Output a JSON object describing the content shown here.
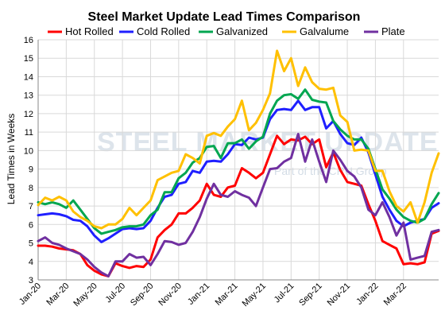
{
  "chart_data": {
    "type": "line",
    "title": "Steel Market Update Lead Times Comparison",
    "ylabel": "Lead Times in Weeks",
    "xlabel": "",
    "ylim": [
      3,
      16
    ],
    "yticks": [
      3,
      4,
      5,
      6,
      7,
      8,
      9,
      10,
      11,
      12,
      13,
      14,
      15,
      16
    ],
    "x_tick_labels": [
      "Jan-20",
      "Mar-20",
      "May-20",
      "Jul-20",
      "Sep-20",
      "Nov-20",
      "Jan-21",
      "Mar-21",
      "May-21",
      "Jul-21",
      "Sep-21",
      "Nov-21",
      "Jan-22",
      "Mar-22"
    ],
    "x_range_months": [
      0,
      27.5
    ],
    "grid": true,
    "legend_position": "top",
    "watermark": {
      "title": "STEEL MARKET UPDATE",
      "subtitle": "Part of the CRU Group"
    },
    "series": [
      {
        "name": "Hot Rolled",
        "color": "#ff0000",
        "points": [
          [
            0,
            4.85
          ],
          [
            0.5,
            4.85
          ],
          [
            1,
            4.8
          ],
          [
            1.5,
            4.7
          ],
          [
            2,
            4.65
          ],
          [
            2.5,
            4.6
          ],
          [
            3,
            4.4
          ],
          [
            3.5,
            3.8
          ],
          [
            4,
            3.5
          ],
          [
            4.5,
            3.3
          ],
          [
            5,
            3.2
          ],
          [
            5.5,
            3.9
          ],
          [
            6,
            3.75
          ],
          [
            6.5,
            3.65
          ],
          [
            7,
            3.75
          ],
          [
            7.5,
            3.7
          ],
          [
            8,
            4.1
          ],
          [
            8.5,
            5.3
          ],
          [
            9,
            5.7
          ],
          [
            9.5,
            6.0
          ],
          [
            10,
            6.6
          ],
          [
            10.5,
            6.6
          ],
          [
            11,
            6.9
          ],
          [
            11.5,
            7.3
          ],
          [
            12,
            8.2
          ],
          [
            12.5,
            7.6
          ],
          [
            13,
            7.5
          ],
          [
            13.5,
            8.0
          ],
          [
            14,
            8.1
          ],
          [
            14.5,
            9.05
          ],
          [
            15,
            8.8
          ],
          [
            15.5,
            8.5
          ],
          [
            16,
            8.8
          ],
          [
            16.5,
            9.8
          ],
          [
            17,
            10.8
          ],
          [
            17.5,
            10.35
          ],
          [
            18,
            10.6
          ],
          [
            18.5,
            10.55
          ],
          [
            19,
            10.75
          ],
          [
            19.5,
            10.35
          ],
          [
            20,
            10.6
          ],
          [
            20.5,
            9.1
          ],
          [
            21,
            9.9
          ],
          [
            21.5,
            8.95
          ],
          [
            22,
            8.3
          ],
          [
            22.5,
            8.2
          ],
          [
            23,
            8.1
          ],
          [
            23.5,
            7.1
          ],
          [
            24,
            6.2
          ],
          [
            24.5,
            5.1
          ],
          [
            25,
            4.9
          ],
          [
            25.5,
            4.7
          ],
          [
            26,
            3.85
          ],
          [
            26.5,
            3.9
          ],
          [
            27,
            3.85
          ],
          [
            27.5,
            3.95
          ],
          [
            28,
            5.5
          ],
          [
            28.5,
            5.65
          ]
        ]
      },
      {
        "name": "Cold Rolled",
        "color": "#1f1fff",
        "points": [
          [
            0,
            6.5
          ],
          [
            0.5,
            6.55
          ],
          [
            1,
            6.6
          ],
          [
            1.5,
            6.55
          ],
          [
            2,
            6.45
          ],
          [
            2.5,
            6.25
          ],
          [
            3,
            6.2
          ],
          [
            3.5,
            5.9
          ],
          [
            4,
            5.4
          ],
          [
            4.5,
            5.05
          ],
          [
            5,
            5.25
          ],
          [
            5.5,
            5.5
          ],
          [
            6,
            5.75
          ],
          [
            6.5,
            5.8
          ],
          [
            7,
            5.75
          ],
          [
            7.5,
            5.8
          ],
          [
            8,
            6.2
          ],
          [
            8.5,
            6.9
          ],
          [
            9,
            7.5
          ],
          [
            9.5,
            7.6
          ],
          [
            10,
            8.2
          ],
          [
            10.5,
            8.3
          ],
          [
            11,
            8.9
          ],
          [
            11.5,
            8.8
          ],
          [
            12,
            9.4
          ],
          [
            12.5,
            9.45
          ],
          [
            13,
            9.4
          ],
          [
            13.5,
            9.8
          ],
          [
            14,
            10.35
          ],
          [
            14.5,
            10.3
          ],
          [
            15,
            10.7
          ],
          [
            15.5,
            10.6
          ],
          [
            16,
            10.7
          ],
          [
            16.5,
            11.7
          ],
          [
            17,
            12.2
          ],
          [
            17.5,
            12.25
          ],
          [
            18,
            12.2
          ],
          [
            18.5,
            12.7
          ],
          [
            19,
            12.2
          ],
          [
            19.5,
            12.35
          ],
          [
            20,
            12.35
          ],
          [
            20.5,
            11.2
          ],
          [
            21,
            11.6
          ],
          [
            21.5,
            10.9
          ],
          [
            22,
            10.4
          ],
          [
            22.5,
            10.3
          ],
          [
            23,
            10.7
          ],
          [
            23.5,
            9.9
          ],
          [
            24,
            8.7
          ],
          [
            24.5,
            7.5
          ],
          [
            25,
            6.8
          ],
          [
            25.5,
            6.2
          ],
          [
            26,
            5.9
          ],
          [
            26.5,
            6.1
          ],
          [
            27,
            6.2
          ],
          [
            27.5,
            6.3
          ],
          [
            28,
            6.9
          ],
          [
            28.5,
            7.15
          ]
        ]
      },
      {
        "name": "Galvanized",
        "color": "#00a650",
        "points": [
          [
            0,
            7.2
          ],
          [
            0.5,
            7.1
          ],
          [
            1,
            7.2
          ],
          [
            1.5,
            7.1
          ],
          [
            2,
            6.9
          ],
          [
            2.5,
            7.3
          ],
          [
            3,
            6.8
          ],
          [
            3.5,
            6.3
          ],
          [
            4,
            5.8
          ],
          [
            4.5,
            5.5
          ],
          [
            5,
            5.6
          ],
          [
            5.5,
            5.7
          ],
          [
            6,
            5.85
          ],
          [
            6.5,
            5.9
          ],
          [
            7,
            5.9
          ],
          [
            7.5,
            6.0
          ],
          [
            8,
            6.5
          ],
          [
            8.5,
            6.8
          ],
          [
            9,
            7.75
          ],
          [
            9.5,
            7.75
          ],
          [
            10,
            8.5
          ],
          [
            10.5,
            8.8
          ],
          [
            11,
            9.35
          ],
          [
            11.5,
            9.6
          ],
          [
            12,
            10.2
          ],
          [
            12.5,
            10.25
          ],
          [
            13,
            9.6
          ],
          [
            13.5,
            10.4
          ],
          [
            14,
            10.4
          ],
          [
            14.5,
            10.6
          ],
          [
            15,
            10.1
          ],
          [
            15.5,
            10.5
          ],
          [
            16,
            10.75
          ],
          [
            16.5,
            12.0
          ],
          [
            17,
            12.7
          ],
          [
            17.5,
            13.0
          ],
          [
            18,
            13.05
          ],
          [
            18.5,
            12.8
          ],
          [
            19,
            13.3
          ],
          [
            19.5,
            12.75
          ],
          [
            20,
            12.65
          ],
          [
            20.5,
            12.6
          ],
          [
            21,
            11.6
          ],
          [
            21.5,
            11.15
          ],
          [
            22,
            10.8
          ],
          [
            22.5,
            10.6
          ],
          [
            23,
            10.6
          ],
          [
            23.5,
            10.1
          ],
          [
            24,
            9.0
          ],
          [
            24.5,
            7.9
          ],
          [
            25,
            7.4
          ],
          [
            25.5,
            6.8
          ],
          [
            26,
            6.4
          ],
          [
            26.5,
            6.2
          ],
          [
            27,
            6.1
          ],
          [
            27.5,
            6.3
          ],
          [
            28,
            7.1
          ],
          [
            28.5,
            7.7
          ]
        ]
      },
      {
        "name": "Galvalume",
        "color": "#ffc000",
        "points": [
          [
            0,
            7.05
          ],
          [
            0.5,
            7.45
          ],
          [
            1,
            7.3
          ],
          [
            1.5,
            7.5
          ],
          [
            2,
            7.3
          ],
          [
            2.5,
            6.7
          ],
          [
            3,
            6.4
          ],
          [
            3.5,
            6.2
          ],
          [
            4,
            5.9
          ],
          [
            4.5,
            5.8
          ],
          [
            5,
            6.0
          ],
          [
            5.5,
            6.0
          ],
          [
            6,
            6.3
          ],
          [
            6.5,
            6.9
          ],
          [
            7,
            6.5
          ],
          [
            7.5,
            6.9
          ],
          [
            8,
            7.3
          ],
          [
            8.5,
            8.4
          ],
          [
            9,
            8.6
          ],
          [
            9.5,
            8.8
          ],
          [
            10,
            8.9
          ],
          [
            10.5,
            9.8
          ],
          [
            11,
            9.6
          ],
          [
            11.5,
            9.3
          ],
          [
            12,
            10.8
          ],
          [
            12.5,
            10.95
          ],
          [
            13,
            10.8
          ],
          [
            13.5,
            11.3
          ],
          [
            14,
            11.7
          ],
          [
            14.5,
            12.7
          ],
          [
            15,
            11.1
          ],
          [
            15.5,
            11.5
          ],
          [
            16,
            12.2
          ],
          [
            16.5,
            13.1
          ],
          [
            17,
            15.4
          ],
          [
            17.5,
            14.3
          ],
          [
            18,
            15.0
          ],
          [
            18.5,
            13.5
          ],
          [
            19,
            14.5
          ],
          [
            19.5,
            13.7
          ],
          [
            20,
            13.35
          ],
          [
            20.5,
            13.3
          ],
          [
            21,
            13.4
          ],
          [
            21.5,
            11.9
          ],
          [
            22,
            11.55
          ],
          [
            22.5,
            10.0
          ],
          [
            23,
            10.05
          ],
          [
            23.5,
            10.0
          ],
          [
            24,
            8.9
          ],
          [
            24.5,
            8.9
          ],
          [
            25,
            7.8
          ],
          [
            25.5,
            7.0
          ],
          [
            26,
            6.7
          ],
          [
            26.5,
            7.2
          ],
          [
            27,
            6.1
          ],
          [
            27.5,
            7.2
          ],
          [
            28,
            8.8
          ],
          [
            28.5,
            9.85
          ]
        ]
      },
      {
        "name": "Plate",
        "color": "#7030a0",
        "points": [
          [
            0,
            5.1
          ],
          [
            0.5,
            5.3
          ],
          [
            1,
            5.0
          ],
          [
            1.5,
            4.9
          ],
          [
            2,
            4.7
          ],
          [
            2.5,
            4.55
          ],
          [
            3,
            4.4
          ],
          [
            3.5,
            4.1
          ],
          [
            4,
            3.7
          ],
          [
            4.5,
            3.4
          ],
          [
            5,
            3.2
          ],
          [
            5.5,
            4.0
          ],
          [
            6,
            4.0
          ],
          [
            6.5,
            4.4
          ],
          [
            7,
            4.2
          ],
          [
            7.5,
            4.25
          ],
          [
            8,
            3.8
          ],
          [
            8.5,
            4.4
          ],
          [
            9,
            5.1
          ],
          [
            9.5,
            5.05
          ],
          [
            10,
            4.9
          ],
          [
            10.5,
            5.0
          ],
          [
            11,
            5.6
          ],
          [
            11.5,
            6.4
          ],
          [
            12,
            7.4
          ],
          [
            12.5,
            8.2
          ],
          [
            13,
            7.6
          ],
          [
            13.5,
            7.5
          ],
          [
            14,
            7.8
          ],
          [
            14.5,
            7.6
          ],
          [
            15,
            7.45
          ],
          [
            15.5,
            7.0
          ],
          [
            16,
            8.0
          ],
          [
            16.5,
            9.0
          ],
          [
            17,
            9.05
          ],
          [
            17.5,
            9.4
          ],
          [
            18,
            9.6
          ],
          [
            18.5,
            10.9
          ],
          [
            19,
            9.4
          ],
          [
            19.5,
            10.6
          ],
          [
            20,
            9.4
          ],
          [
            20.5,
            8.3
          ],
          [
            21,
            10.0
          ],
          [
            21.5,
            9.5
          ],
          [
            22,
            8.9
          ],
          [
            22.5,
            8.6
          ],
          [
            23,
            8.0
          ],
          [
            23.5,
            6.8
          ],
          [
            24,
            6.5
          ],
          [
            24.5,
            7.2
          ],
          [
            25,
            6.4
          ],
          [
            25.5,
            5.4
          ],
          [
            26,
            6.1
          ],
          [
            26.5,
            4.1
          ],
          [
            27,
            4.2
          ],
          [
            27.5,
            4.3
          ],
          [
            28,
            5.6
          ],
          [
            28.5,
            5.7
          ]
        ]
      }
    ]
  }
}
